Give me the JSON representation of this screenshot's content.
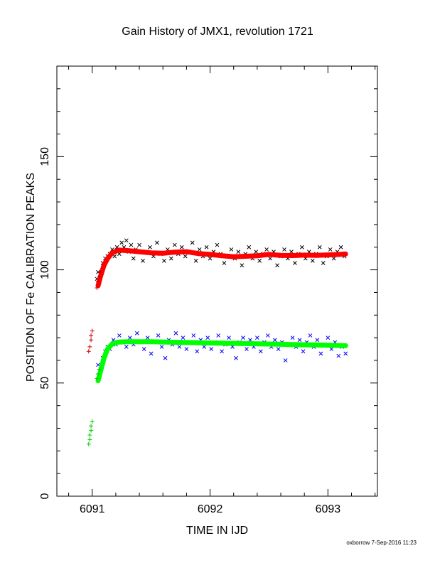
{
  "chart_data": {
    "type": "scatter",
    "title": "Gain History of JMX1, revolution 1721",
    "xlabel": "TIME IN IJD",
    "ylabel": "POSITION OF Fe CALIBRATION PEAKS",
    "xlim": [
      6090.7,
      6093.42
    ],
    "ylim": [
      0,
      190
    ],
    "x_ticks": [
      6091,
      6092,
      6093
    ],
    "y_ticks": [
      0,
      50,
      100,
      150
    ],
    "grid": false,
    "legend": "none",
    "series": [
      {
        "marker": "x",
        "color": "#000000",
        "points": [
          [
            6091.04,
            96
          ],
          [
            6091.05,
            99
          ],
          [
            6091.07,
            98
          ],
          [
            6091.09,
            103
          ],
          [
            6091.11,
            105
          ],
          [
            6091.13,
            106
          ],
          [
            6091.15,
            107
          ],
          [
            6091.17,
            109
          ],
          [
            6091.19,
            106
          ],
          [
            6091.21,
            110
          ],
          [
            6091.23,
            107
          ],
          [
            6091.25,
            112
          ],
          [
            6091.27,
            110
          ],
          [
            6091.29,
            113
          ],
          [
            6091.31,
            108
          ],
          [
            6091.33,
            111
          ],
          [
            6091.35,
            105
          ],
          [
            6091.37,
            109
          ],
          [
            6091.4,
            111
          ],
          [
            6091.43,
            104
          ],
          [
            6091.46,
            108
          ],
          [
            6091.49,
            110
          ],
          [
            6091.52,
            106
          ],
          [
            6091.55,
            112
          ],
          [
            6091.58,
            107
          ],
          [
            6091.61,
            104
          ],
          [
            6091.64,
            109
          ],
          [
            6091.67,
            105
          ],
          [
            6091.7,
            111
          ],
          [
            6091.73,
            107
          ],
          [
            6091.76,
            110
          ],
          [
            6091.79,
            106
          ],
          [
            6091.82,
            108
          ],
          [
            6091.85,
            112
          ],
          [
            6091.88,
            104
          ],
          [
            6091.91,
            109
          ],
          [
            6091.94,
            106
          ],
          [
            6091.97,
            110
          ],
          [
            6092.0,
            105
          ],
          [
            6092.03,
            108
          ],
          [
            6092.06,
            111
          ],
          [
            6092.09,
            107
          ],
          [
            6092.12,
            103
          ],
          [
            6092.15,
            106
          ],
          [
            6092.18,
            109
          ],
          [
            6092.21,
            105
          ],
          [
            6092.24,
            108
          ],
          [
            6092.27,
            102
          ],
          [
            6092.3,
            107
          ],
          [
            6092.33,
            110
          ],
          [
            6092.36,
            105
          ],
          [
            6092.39,
            108
          ],
          [
            6092.42,
            104
          ],
          [
            6092.45,
            107
          ],
          [
            6092.48,
            109
          ],
          [
            6092.51,
            105
          ],
          [
            6092.54,
            108
          ],
          [
            6092.57,
            102
          ],
          [
            6092.6,
            106
          ],
          [
            6092.63,
            109
          ],
          [
            6092.66,
            105
          ],
          [
            6092.69,
            108
          ],
          [
            6092.72,
            103
          ],
          [
            6092.75,
            107
          ],
          [
            6092.78,
            110
          ],
          [
            6092.81,
            105
          ],
          [
            6092.84,
            108
          ],
          [
            6092.87,
            104
          ],
          [
            6092.9,
            107
          ],
          [
            6092.93,
            110
          ],
          [
            6092.96,
            103
          ],
          [
            6092.99,
            106
          ],
          [
            6093.02,
            109
          ],
          [
            6093.05,
            105
          ],
          [
            6093.08,
            108
          ],
          [
            6093.11,
            110
          ],
          [
            6093.14,
            106
          ]
        ]
      },
      {
        "marker": "line",
        "color": "#ff0000",
        "points": [
          [
            6091.05,
            93
          ],
          [
            6091.07,
            97
          ],
          [
            6091.1,
            102
          ],
          [
            6091.13,
            105
          ],
          [
            6091.17,
            107.5
          ],
          [
            6091.22,
            108.7
          ],
          [
            6091.3,
            108.5
          ],
          [
            6091.4,
            108
          ],
          [
            6091.5,
            107.5
          ],
          [
            6091.6,
            107.3
          ],
          [
            6091.7,
            107.8
          ],
          [
            6091.8,
            108
          ],
          [
            6091.9,
            107.2
          ],
          [
            6092.0,
            106.8
          ],
          [
            6092.1,
            106.2
          ],
          [
            6092.2,
            105.8
          ],
          [
            6092.3,
            106
          ],
          [
            6092.4,
            106.2
          ],
          [
            6092.5,
            106.8
          ],
          [
            6092.6,
            106.4
          ],
          [
            6092.7,
            106.3
          ],
          [
            6092.8,
            106.5
          ],
          [
            6092.9,
            106.4
          ],
          [
            6093.0,
            106.6
          ],
          [
            6093.1,
            106.8
          ],
          [
            6093.15,
            107
          ]
        ]
      },
      {
        "marker": "+",
        "color": "#cc0000",
        "points": [
          [
            6090.97,
            64
          ],
          [
            6090.98,
            66
          ],
          [
            6090.99,
            69
          ],
          [
            6090.99,
            71
          ],
          [
            6091.0,
            73
          ]
        ]
      },
      {
        "marker": "+",
        "color": "#cc0000",
        "points": [
          [
            6091.04,
            92
          ],
          [
            6091.05,
            95
          ],
          [
            6091.06,
            97
          ],
          [
            6091.07,
            99
          ]
        ]
      },
      {
        "marker": "x",
        "color": "#0000ff",
        "points": [
          [
            6091.05,
            58
          ],
          [
            6091.07,
            56
          ],
          [
            6091.09,
            61
          ],
          [
            6091.11,
            64
          ],
          [
            6091.13,
            66
          ],
          [
            6091.15,
            65
          ],
          [
            6091.18,
            69
          ],
          [
            6091.2,
            67
          ],
          [
            6091.23,
            71
          ],
          [
            6091.26,
            68
          ],
          [
            6091.29,
            66
          ],
          [
            6091.32,
            70
          ],
          [
            6091.35,
            67
          ],
          [
            6091.38,
            72
          ],
          [
            6091.41,
            68
          ],
          [
            6091.44,
            65
          ],
          [
            6091.47,
            70
          ],
          [
            6091.5,
            63
          ],
          [
            6091.53,
            68
          ],
          [
            6091.56,
            71
          ],
          [
            6091.59,
            66
          ],
          [
            6091.62,
            61
          ],
          [
            6091.65,
            69
          ],
          [
            6091.68,
            67
          ],
          [
            6091.71,
            72
          ],
          [
            6091.74,
            66
          ],
          [
            6091.77,
            70
          ],
          [
            6091.8,
            65
          ],
          [
            6091.83,
            68
          ],
          [
            6091.86,
            71
          ],
          [
            6091.89,
            64
          ],
          [
            6091.92,
            69
          ],
          [
            6091.95,
            66
          ],
          [
            6091.98,
            70
          ],
          [
            6092.01,
            65
          ],
          [
            6092.04,
            68
          ],
          [
            6092.07,
            71
          ],
          [
            6092.1,
            64
          ],
          [
            6092.13,
            67
          ],
          [
            6092.16,
            70
          ],
          [
            6092.19,
            66
          ],
          [
            6092.22,
            61
          ],
          [
            6092.25,
            68
          ],
          [
            6092.28,
            70
          ],
          [
            6092.31,
            65
          ],
          [
            6092.34,
            69
          ],
          [
            6092.37,
            66
          ],
          [
            6092.4,
            70
          ],
          [
            6092.43,
            64
          ],
          [
            6092.46,
            68
          ],
          [
            6092.49,
            71
          ],
          [
            6092.52,
            66
          ],
          [
            6092.55,
            69
          ],
          [
            6092.58,
            65
          ],
          [
            6092.61,
            68
          ],
          [
            6092.64,
            60
          ],
          [
            6092.67,
            67
          ],
          [
            6092.7,
            70
          ],
          [
            6092.73,
            66
          ],
          [
            6092.76,
            69
          ],
          [
            6092.79,
            64
          ],
          [
            6092.82,
            68
          ],
          [
            6092.85,
            71
          ],
          [
            6092.88,
            66
          ],
          [
            6092.91,
            69
          ],
          [
            6092.94,
            63
          ],
          [
            6092.97,
            67
          ],
          [
            6093.0,
            70
          ],
          [
            6093.03,
            65
          ],
          [
            6093.06,
            68
          ],
          [
            6093.09,
            62
          ],
          [
            6093.12,
            66
          ],
          [
            6093.15,
            63
          ]
        ]
      },
      {
        "marker": "line",
        "color": "#00ff00",
        "points": [
          [
            6091.05,
            51
          ],
          [
            6091.07,
            55
          ],
          [
            6091.1,
            61
          ],
          [
            6091.13,
            65
          ],
          [
            6091.17,
            67.3
          ],
          [
            6091.22,
            68.1
          ],
          [
            6091.3,
            68.2
          ],
          [
            6091.5,
            68.2
          ],
          [
            6091.7,
            68
          ],
          [
            6091.9,
            67.8
          ],
          [
            6092.1,
            67.6
          ],
          [
            6092.3,
            67.4
          ],
          [
            6092.5,
            67.2
          ],
          [
            6092.7,
            67
          ],
          [
            6092.9,
            66.8
          ],
          [
            6093.15,
            66.5
          ]
        ]
      },
      {
        "marker": "+",
        "color": "#00cc00",
        "points": [
          [
            6090.97,
            23
          ],
          [
            6090.98,
            25
          ],
          [
            6090.98,
            27
          ],
          [
            6090.99,
            29
          ],
          [
            6090.99,
            31
          ],
          [
            6091.0,
            33
          ]
        ]
      },
      {
        "marker": "+",
        "color": "#00cc00",
        "points": [
          [
            6091.04,
            52
          ],
          [
            6091.05,
            54
          ],
          [
            6091.06,
            56
          ]
        ]
      }
    ]
  },
  "footer": "oxborrow  7-Sep-2016 11:23"
}
